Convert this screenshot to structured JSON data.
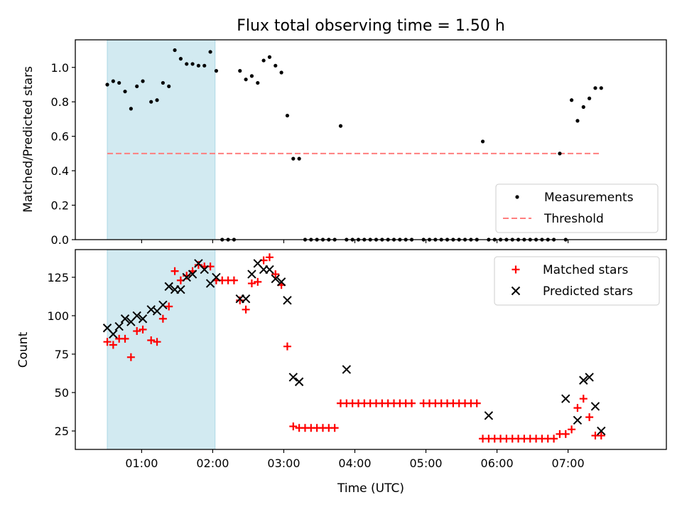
{
  "figure": {
    "title": "Flux total observing time = 1.50 h",
    "shaded_region": {
      "start": "00:31",
      "end": "02:02",
      "color": "#add8e6"
    }
  },
  "chart_data": [
    {
      "type": "scatter",
      "ylabel": "Matched/Predicted stars",
      "ylim": [
        0,
        1.16
      ],
      "yticks": [
        0.0,
        0.2,
        0.4,
        0.6,
        0.8,
        1.0
      ],
      "ytick_labels": [
        "0.0",
        "0.2",
        "0.4",
        "0.6",
        "0.8",
        "1.0"
      ],
      "legend": {
        "placement": "lower right",
        "entries": [
          "Measurements",
          "Threshold"
        ]
      },
      "threshold": {
        "value": 0.5,
        "x_start": "00:31",
        "x_end": "07:28",
        "color": "#ff7f7f",
        "style": "dashed"
      },
      "series": [
        {
          "name": "Measurements",
          "color": "#000000",
          "marker": "dot",
          "x": [
            "00:31",
            "00:36",
            "00:41",
            "00:46",
            "00:51",
            "00:56",
            "01:01",
            "01:08",
            "01:13",
            "01:18",
            "01:23",
            "01:28",
            "01:33",
            "01:38",
            "01:43",
            "01:48",
            "01:53",
            "01:58",
            "02:03",
            "02:08",
            "02:13",
            "02:18",
            "02:23",
            "02:28",
            "02:33",
            "02:38",
            "02:43",
            "02:48",
            "02:53",
            "02:58",
            "03:03",
            "03:08",
            "03:13",
            "03:18",
            "03:23",
            "03:28",
            "03:33",
            "03:38",
            "03:43",
            "03:48",
            "03:53",
            "03:58",
            "04:03",
            "04:08",
            "04:13",
            "04:18",
            "04:23",
            "04:28",
            "04:33",
            "04:38",
            "04:43",
            "04:48",
            "04:58",
            "05:03",
            "05:08",
            "05:13",
            "05:18",
            "05:23",
            "05:28",
            "05:33",
            "05:38",
            "05:43",
            "05:48",
            "05:53",
            "05:58",
            "06:03",
            "06:08",
            "06:13",
            "06:18",
            "06:23",
            "06:28",
            "06:33",
            "06:38",
            "06:43",
            "06:48",
            "06:53",
            "06:58",
            "07:03",
            "07:08",
            "07:13",
            "07:18",
            "07:23",
            "07:28"
          ],
          "y": [
            0.9,
            0.92,
            0.91,
            0.86,
            0.76,
            0.89,
            0.92,
            0.8,
            0.81,
            0.91,
            0.89,
            1.1,
            1.05,
            1.02,
            1.02,
            1.01,
            1.01,
            1.09,
            0.98,
            0,
            0,
            0,
            0.98,
            0.93,
            0.95,
            0.91,
            1.04,
            1.06,
            1.01,
            0.97,
            0.72,
            0.47,
            0.47,
            0,
            0,
            0,
            0,
            0,
            0,
            0.66,
            0,
            0,
            0,
            0,
            0,
            0,
            0,
            0,
            0,
            0,
            0,
            0,
            0,
            0,
            0,
            0,
            0,
            0,
            0,
            0,
            0,
            0,
            0.57,
            0,
            0,
            0,
            0,
            0,
            0,
            0,
            0,
            0,
            0,
            0,
            0,
            0.5,
            0,
            0.81,
            0.69,
            0.77,
            0.82,
            0.88,
            0.88
          ]
        }
      ]
    },
    {
      "type": "scatter",
      "xlabel": "Time (UTC)",
      "ylabel": "Count",
      "ylim": [
        13,
        143
      ],
      "yticks": [
        25,
        50,
        75,
        100,
        125
      ],
      "ytick_labels": [
        "25",
        "50",
        "75",
        "100",
        "125"
      ],
      "xticks": [
        "01:00",
        "02:00",
        "03:00",
        "04:00",
        "05:00",
        "06:00",
        "07:00"
      ],
      "legend": {
        "placement": "top-right",
        "entries": [
          "Matched stars",
          "Predicted stars"
        ]
      },
      "series": [
        {
          "name": "Matched stars",
          "color": "#ff0000",
          "marker": "plus",
          "x": [
            "00:31",
            "00:36",
            "00:41",
            "00:46",
            "00:51",
            "00:56",
            "01:01",
            "01:08",
            "01:13",
            "01:18",
            "01:23",
            "01:28",
            "01:33",
            "01:38",
            "01:43",
            "01:48",
            "01:53",
            "01:58",
            "02:03",
            "02:08",
            "02:13",
            "02:18",
            "02:23",
            "02:28",
            "02:33",
            "02:38",
            "02:43",
            "02:48",
            "02:53",
            "02:58",
            "03:03",
            "03:08",
            "03:13",
            "03:18",
            "03:23",
            "03:28",
            "03:33",
            "03:38",
            "03:43",
            "03:48",
            "03:53",
            "03:58",
            "04:03",
            "04:08",
            "04:13",
            "04:18",
            "04:23",
            "04:28",
            "04:33",
            "04:38",
            "04:43",
            "04:48",
            "04:58",
            "05:03",
            "05:08",
            "05:13",
            "05:18",
            "05:23",
            "05:28",
            "05:33",
            "05:38",
            "05:43",
            "05:48",
            "05:53",
            "05:58",
            "06:03",
            "06:08",
            "06:13",
            "06:18",
            "06:23",
            "06:28",
            "06:33",
            "06:38",
            "06:43",
            "06:48",
            "06:53",
            "06:58",
            "07:03",
            "07:08",
            "07:13",
            "07:18",
            "07:23",
            "07:28"
          ],
          "y": [
            83,
            81,
            85,
            85,
            73,
            90,
            91,
            84,
            83,
            98,
            106,
            129,
            123,
            126,
            129,
            133,
            132,
            132,
            123,
            123,
            123,
            123,
            110,
            104,
            121,
            122,
            136,
            138,
            127,
            120,
            80,
            28,
            27,
            27,
            27,
            27,
            27,
            27,
            27,
            43,
            43,
            43,
            43,
            43,
            43,
            43,
            43,
            43,
            43,
            43,
            43,
            43,
            43,
            43,
            43,
            43,
            43,
            43,
            43,
            43,
            43,
            43,
            20,
            20,
            20,
            20,
            20,
            20,
            20,
            20,
            20,
            20,
            20,
            20,
            20,
            23,
            23,
            26,
            40,
            46,
            34,
            22,
            22
          ]
        },
        {
          "name": "Predicted stars",
          "color": "#000000",
          "marker": "x",
          "x": [
            "00:31",
            "00:36",
            "00:41",
            "00:46",
            "00:51",
            "00:56",
            "01:01",
            "01:08",
            "01:13",
            "01:18",
            "01:23",
            "01:28",
            "01:33",
            "01:38",
            "01:43",
            "01:48",
            "01:53",
            "01:58",
            "02:03",
            "02:23",
            "02:28",
            "02:33",
            "02:38",
            "02:43",
            "02:48",
            "02:53",
            "02:58",
            "03:03",
            "03:08",
            "03:13",
            "03:53",
            "05:53",
            "06:58",
            "07:08",
            "07:13",
            "07:18",
            "07:23",
            "07:28"
          ],
          "y": [
            92,
            88,
            93,
            98,
            96,
            100,
            98,
            104,
            103,
            107,
            119,
            117,
            117,
            125,
            127,
            134,
            130,
            121,
            125,
            111,
            111,
            127,
            134,
            130,
            130,
            124,
            122,
            110,
            60,
            57,
            65,
            35,
            46,
            32,
            58,
            60,
            41,
            25
          ]
        }
      ]
    }
  ]
}
